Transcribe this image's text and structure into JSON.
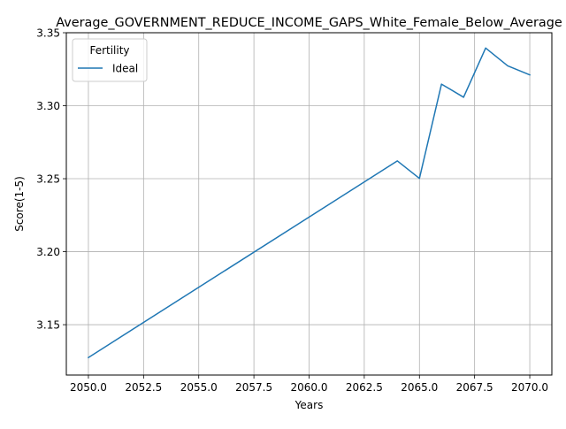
{
  "chart_data": {
    "type": "line",
    "title": "Average_GOVERNMENT_REDUCE_INCOME_GAPS_White_Female_Below_Average",
    "xlabel": "Years",
    "ylabel": "Score(1-5)",
    "xlim": [
      2049.0,
      2071.0
    ],
    "ylim": [
      3.1155,
      3.35
    ],
    "x_ticks": [
      "2050.0",
      "2052.5",
      "2055.0",
      "2057.5",
      "2060.0",
      "2062.5",
      "2065.0",
      "2067.5",
      "2070.0"
    ],
    "y_ticks": [
      "3.15",
      "3.20",
      "3.25",
      "3.30",
      "3.35"
    ],
    "grid": true,
    "legend": {
      "title": "Fertility",
      "placement": "top-left"
    },
    "series": [
      {
        "name": "Ideal",
        "color": "#1f77b4",
        "x": [
          2050,
          2064,
          2065,
          2066,
          2067,
          2068,
          2069,
          2070
        ],
        "y": [
          3.1275,
          3.2622,
          3.2502,
          3.3148,
          3.3058,
          3.3395,
          3.3273,
          3.3211
        ]
      }
    ]
  }
}
